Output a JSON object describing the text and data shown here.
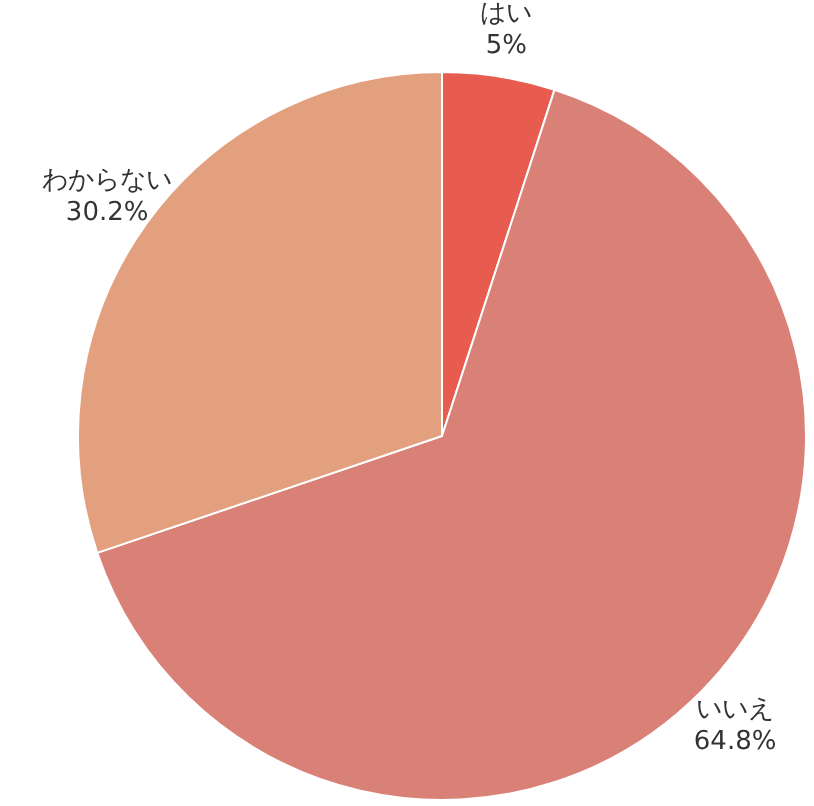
{
  "chart_data": {
    "type": "pie",
    "categories": [
      "はい",
      "いいえ",
      "わからない"
    ],
    "values": [
      5,
      64.8,
      30.2
    ],
    "colors": [
      "#e85c4f",
      "#d98077",
      "#e3a07f"
    ],
    "value_labels": [
      "5%",
      "64.8%",
      "30.2%"
    ]
  }
}
